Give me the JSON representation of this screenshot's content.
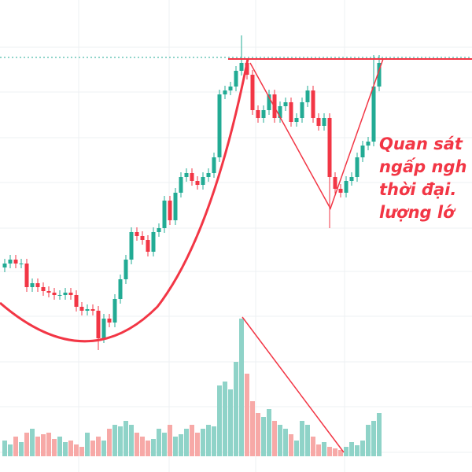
{
  "chart_data": {
    "type": "candlestick",
    "annotation_lines": [
      "Quan sát",
      "ngấp ngh",
      "thời đại.",
      "lượng lớ"
    ],
    "ylim": [
      0,
      600
    ],
    "volume_lim": [
      0,
      580
    ],
    "up_color": "#22ab94",
    "down_color": "#f23645",
    "volume_up_color": "#8fd3c8",
    "volume_down_color": "#f7a9a7",
    "annotation_color": "#f23645",
    "open": [
      260,
      265,
      270,
      265,
      265,
      235,
      240,
      235,
      230,
      228,
      225,
      225,
      228,
      225,
      210,
      205,
      207,
      205,
      170,
      195,
      190,
      220,
      245,
      270,
      305,
      300,
      295,
      280,
      305,
      310,
      345,
      320,
      355,
      375,
      380,
      370,
      365,
      375,
      380,
      400,
      480,
      485,
      490,
      510,
      520,
      505,
      460,
      450,
      460,
      480,
      450,
      465,
      470,
      445,
      450,
      470,
      485,
      450,
      440,
      450,
      375,
      360,
      355,
      370,
      375,
      400,
      415,
      420,
      490
    ],
    "high": [
      271,
      276,
      276,
      271,
      271,
      246,
      246,
      241,
      236,
      234,
      231,
      234,
      234,
      231,
      216,
      213,
      213,
      211,
      201,
      201,
      226,
      251,
      276,
      311,
      311,
      306,
      301,
      311,
      316,
      351,
      351,
      361,
      381,
      386,
      386,
      376,
      381,
      386,
      406,
      486,
      491,
      496,
      516,
      555,
      526,
      511,
      466,
      466,
      486,
      486,
      471,
      476,
      476,
      456,
      476,
      491,
      491,
      456,
      456,
      456,
      381,
      366,
      376,
      381,
      406,
      421,
      426,
      530,
      530
    ],
    "low": [
      254,
      259,
      259,
      259,
      229,
      229,
      229,
      224,
      222,
      219,
      219,
      219,
      219,
      204,
      199,
      199,
      199,
      155,
      164,
      184,
      184,
      214,
      239,
      264,
      294,
      289,
      274,
      274,
      299,
      304,
      314,
      314,
      349,
      369,
      364,
      359,
      359,
      369,
      374,
      394,
      474,
      479,
      484,
      504,
      499,
      454,
      444,
      444,
      454,
      444,
      444,
      459,
      439,
      439,
      444,
      464,
      444,
      434,
      434,
      310,
      354,
      349,
      349,
      364,
      369,
      394,
      409,
      414,
      484
    ],
    "close": [
      265,
      270,
      265,
      265,
      235,
      240,
      235,
      230,
      228,
      225,
      225,
      228,
      225,
      210,
      205,
      207,
      205,
      170,
      195,
      190,
      220,
      245,
      270,
      305,
      300,
      295,
      280,
      305,
      310,
      345,
      320,
      355,
      375,
      380,
      370,
      365,
      375,
      380,
      400,
      480,
      485,
      490,
      510,
      520,
      505,
      460,
      450,
      460,
      480,
      450,
      465,
      470,
      445,
      450,
      470,
      485,
      450,
      440,
      450,
      375,
      360,
      355,
      370,
      375,
      400,
      415,
      420,
      490,
      520
    ],
    "volume": [
      20,
      15,
      25,
      18,
      30,
      35,
      25,
      28,
      30,
      22,
      25,
      18,
      20,
      15,
      12,
      30,
      20,
      25,
      20,
      35,
      40,
      38,
      45,
      40,
      30,
      25,
      20,
      22,
      35,
      30,
      40,
      25,
      28,
      35,
      40,
      30,
      35,
      40,
      38,
      90,
      95,
      85,
      120,
      175,
      105,
      70,
      55,
      50,
      60,
      45,
      40,
      35,
      28,
      20,
      45,
      40,
      25,
      15,
      18,
      12,
      10,
      8,
      12,
      18,
      14,
      20,
      40,
      45,
      55
    ]
  }
}
